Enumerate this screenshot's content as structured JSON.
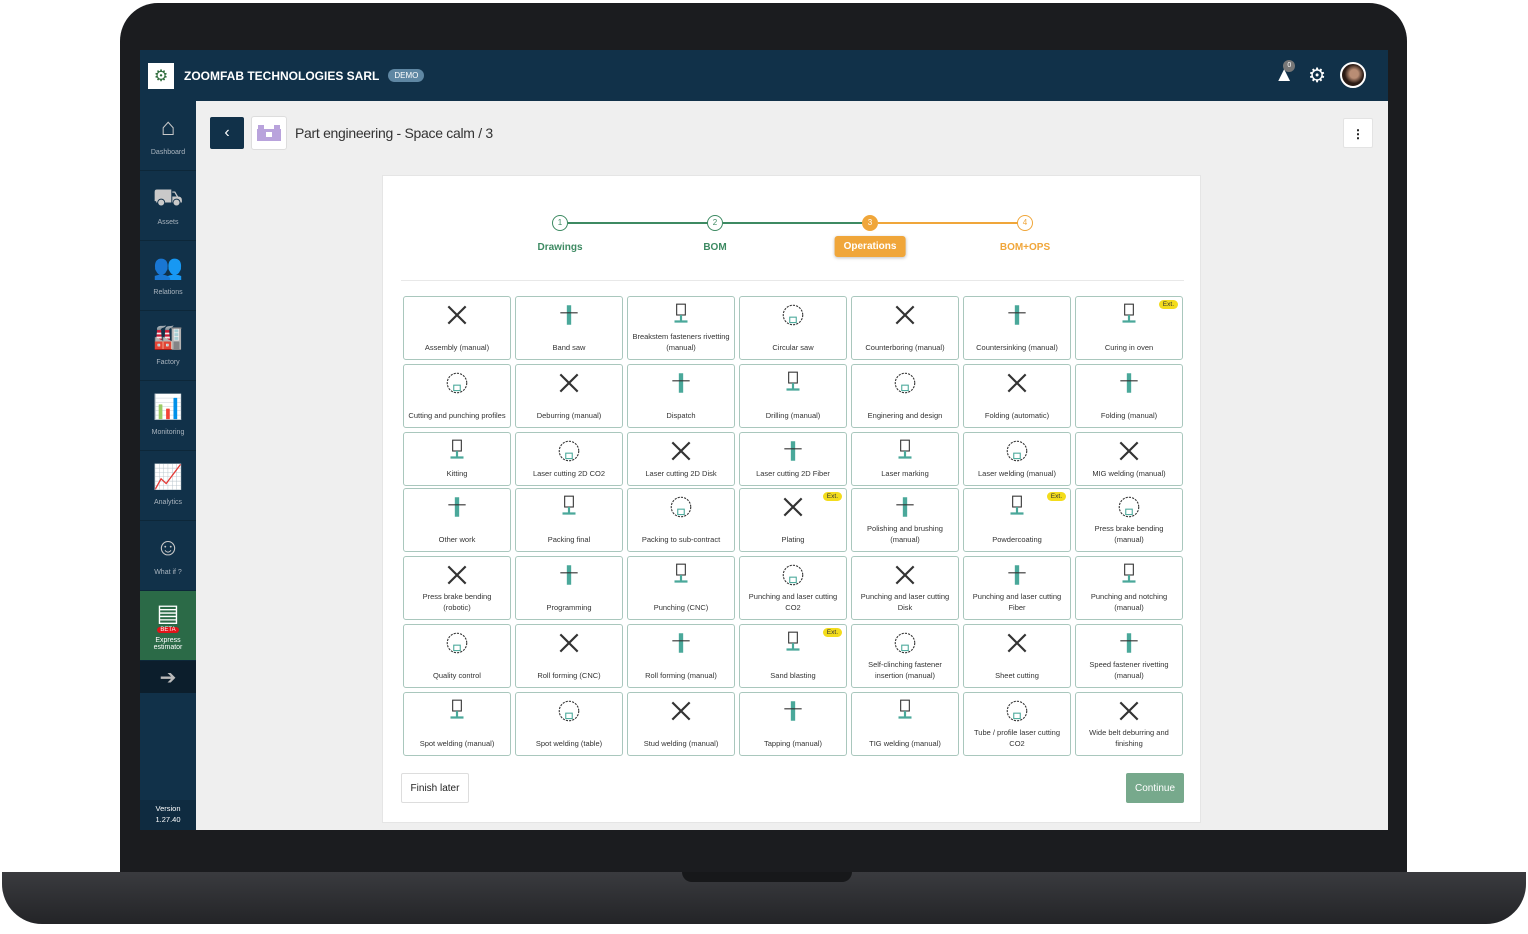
{
  "header": {
    "company": "ZOOMFAB TECHNOLOGIES SARL",
    "badge": "DEMO",
    "notifications": "0",
    "colors": {
      "topbar": "#113149",
      "accent_green": "#3d8a62",
      "accent_orange": "#f0a63a"
    }
  },
  "sidebar": {
    "items": [
      {
        "label": "Dashboard",
        "icon": "home-icon"
      },
      {
        "label": "Assets",
        "icon": "assets-icon"
      },
      {
        "label": "Relations",
        "icon": "relations-icon"
      },
      {
        "label": "Factory",
        "icon": "factory-icon"
      },
      {
        "label": "Monitoring",
        "icon": "monitoring-icon"
      },
      {
        "label": "Analytics",
        "icon": "analytics-icon"
      },
      {
        "label": "What if ?",
        "icon": "what-if-icon"
      },
      {
        "label": "Express estimator",
        "icon": "estimator-icon",
        "badge": "BETA"
      }
    ],
    "version_label": "Version",
    "version": "1.27.40"
  },
  "page": {
    "title": "Part engineering - Space calm / 3"
  },
  "stepper": {
    "steps": [
      {
        "num": "1",
        "label": "Drawings",
        "state": "done"
      },
      {
        "num": "2",
        "label": "BOM",
        "state": "done"
      },
      {
        "num": "3",
        "label": "Operations",
        "state": "active"
      },
      {
        "num": "4",
        "label": "BOM+OPS",
        "state": "todo"
      }
    ]
  },
  "operations": [
    {
      "label": "Assembly (manual)"
    },
    {
      "label": "Band saw"
    },
    {
      "label": "Breakstem fasteners rivetting (manual)"
    },
    {
      "label": "Circular saw"
    },
    {
      "label": "Counterboring (manual)"
    },
    {
      "label": "Countersinking (manual)"
    },
    {
      "label": "Curing in oven",
      "ext": "Ext."
    },
    {
      "label": "Cutting and punching profiles"
    },
    {
      "label": "Deburring (manual)"
    },
    {
      "label": "Dispatch"
    },
    {
      "label": "Drilling (manual)"
    },
    {
      "label": "Enginering and design"
    },
    {
      "label": "Folding (automatic)"
    },
    {
      "label": "Folding (manual)"
    },
    {
      "label": "Kitting"
    },
    {
      "label": "Laser cutting 2D CO2"
    },
    {
      "label": "Laser cutting 2D Disk"
    },
    {
      "label": "Laser cutting 2D Fiber"
    },
    {
      "label": "Laser marking"
    },
    {
      "label": "Laser welding (manual)"
    },
    {
      "label": "MIG welding (manual)"
    },
    {
      "label": "Other work"
    },
    {
      "label": "Packing final"
    },
    {
      "label": "Packing to sub-contract"
    },
    {
      "label": "Plating",
      "ext": "Ext."
    },
    {
      "label": "Polishing and brushing (manual)"
    },
    {
      "label": "Powdercoating",
      "ext": "Ext."
    },
    {
      "label": "Press brake bending (manual)"
    },
    {
      "label": "Press brake bending (robotic)"
    },
    {
      "label": "Programming"
    },
    {
      "label": "Punching (CNC)"
    },
    {
      "label": "Punching and laser cutting CO2"
    },
    {
      "label": "Punching and laser cutting Disk"
    },
    {
      "label": "Punching and laser cutting Fiber"
    },
    {
      "label": "Punching and notching (manual)"
    },
    {
      "label": "Quality control"
    },
    {
      "label": "Roll forming (CNC)"
    },
    {
      "label": "Roll forming (manual)"
    },
    {
      "label": "Sand blasting",
      "ext": "Ext."
    },
    {
      "label": "Self-clinching fastener insertion (manual)"
    },
    {
      "label": "Sheet cutting"
    },
    {
      "label": "Speed fastener rivetting (manual)"
    },
    {
      "label": "Spot welding (manual)"
    },
    {
      "label": "Spot welding (table)"
    },
    {
      "label": "Stud welding (manual)"
    },
    {
      "label": "Tapping (manual)"
    },
    {
      "label": "TIG welding (manual)"
    },
    {
      "label": "Tube / profile laser cutting CO2"
    },
    {
      "label": "Wide belt deburring and finishing"
    }
  ],
  "actions": {
    "finish_later": "Finish later",
    "continue": "Continue"
  }
}
